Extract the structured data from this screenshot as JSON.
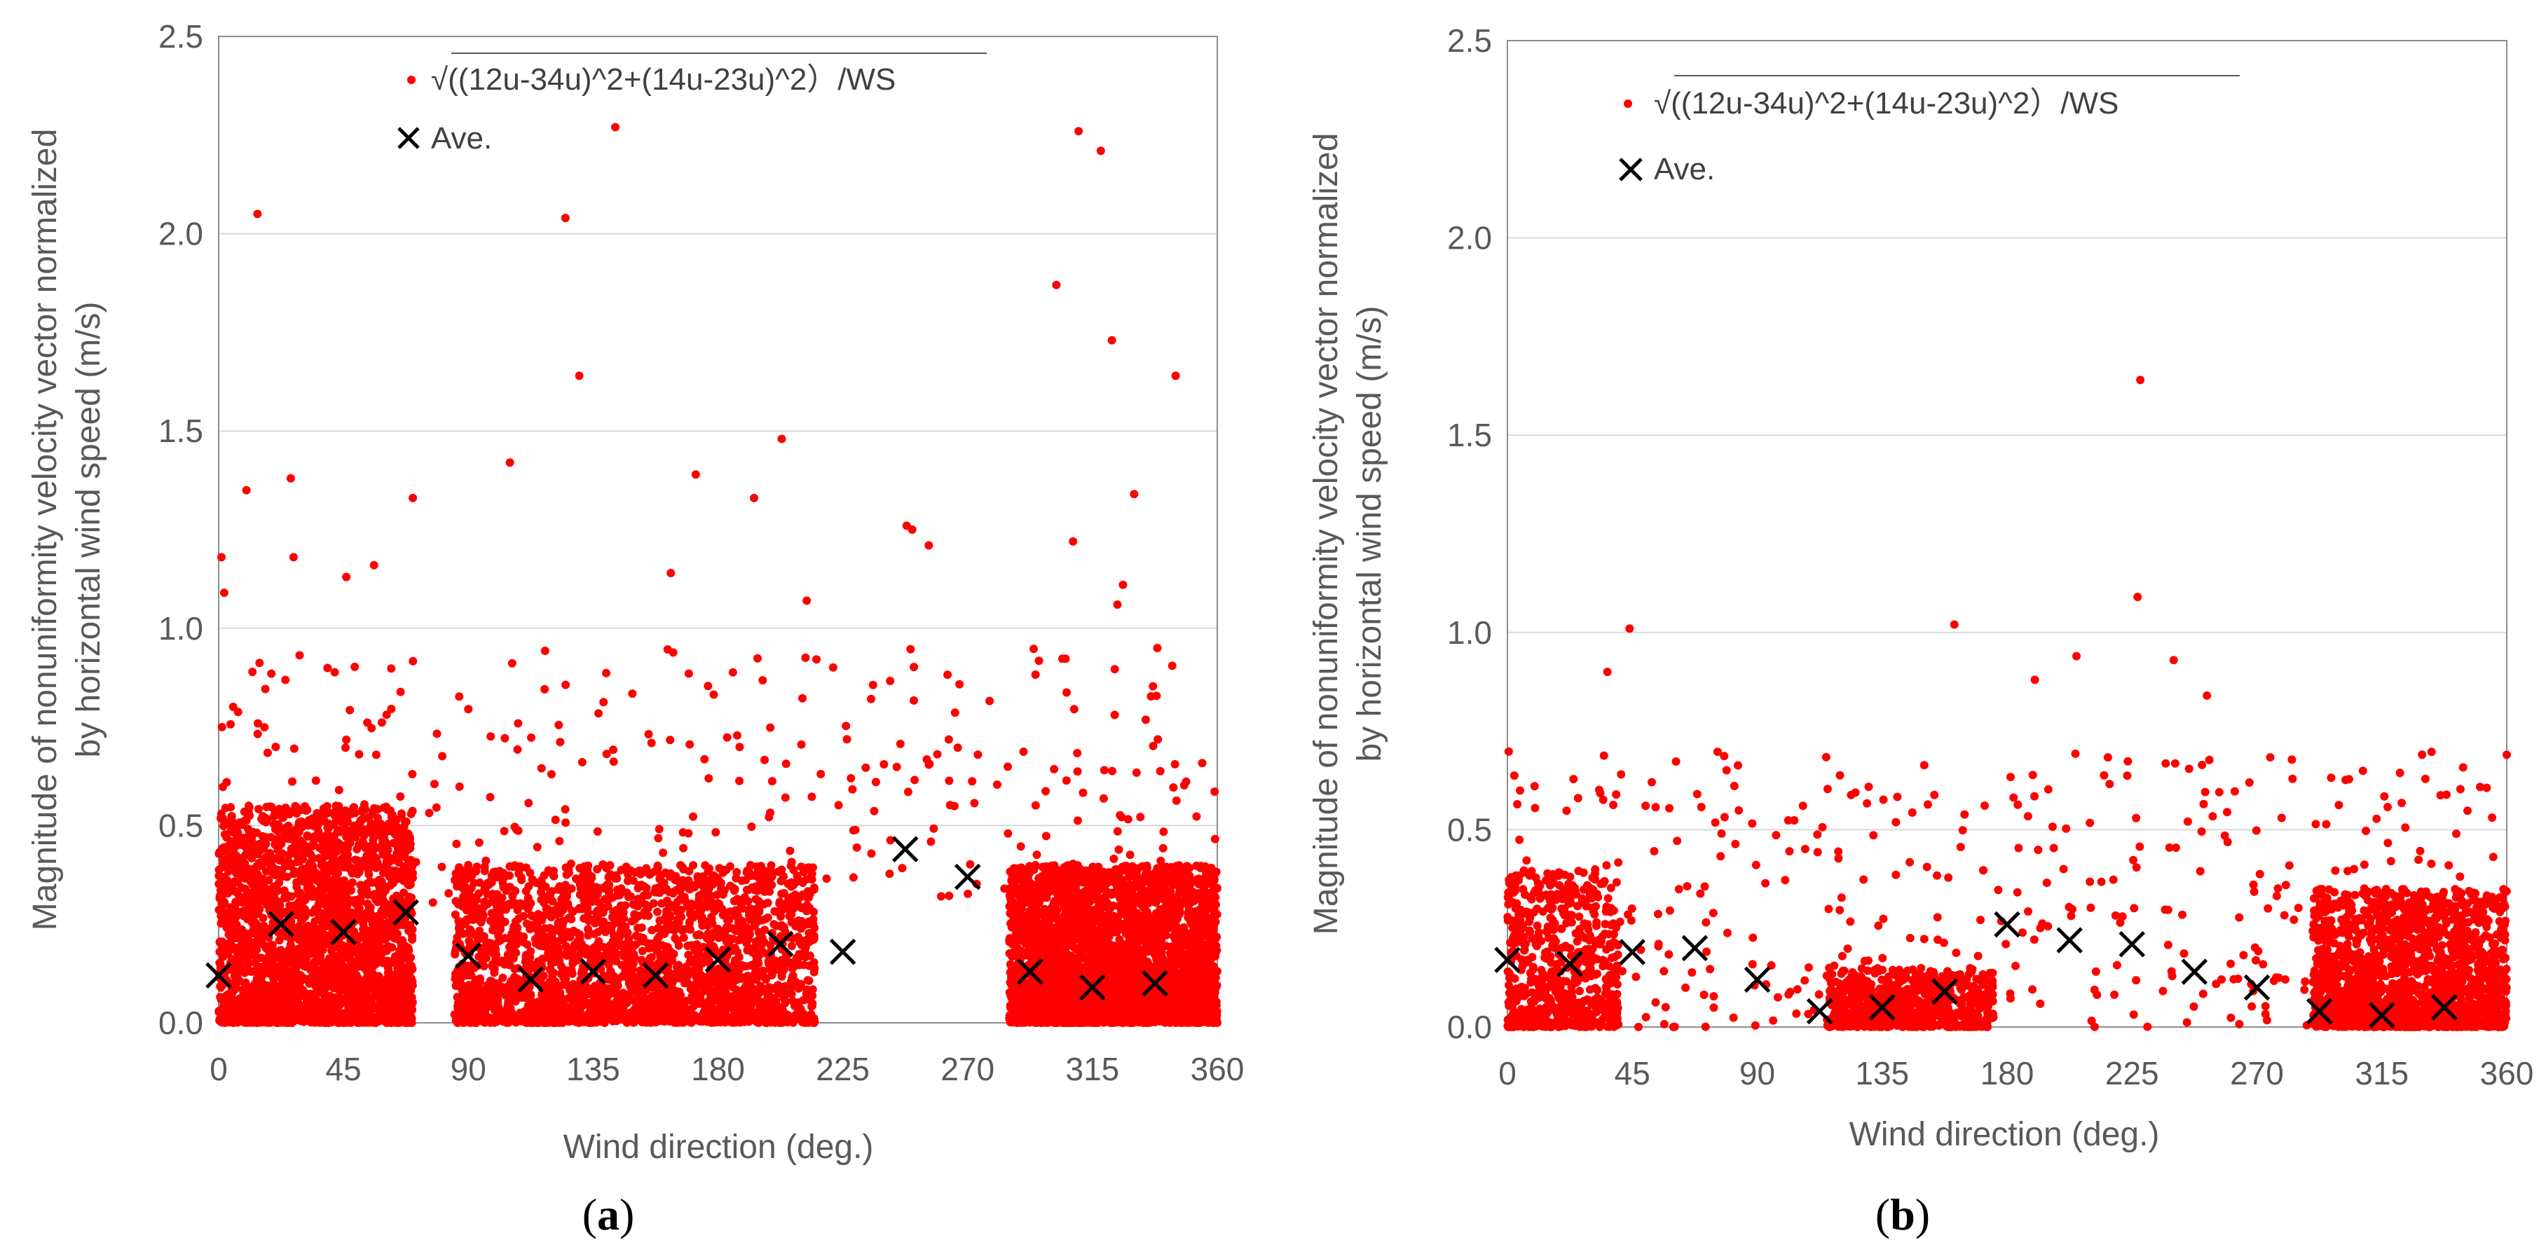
{
  "chart_data": [
    {
      "type": "scatter",
      "panel_label": "a",
      "xlabel": "Wind direction (deg.)",
      "ylabel_line1": "Magnitude of nonuniformity velocity vector normalized",
      "ylabel_line2": "by horizontal wind speed (m/s)",
      "xlim": [
        0,
        360
      ],
      "ylim": [
        0,
        2.5
      ],
      "xticks": [
        0,
        45,
        90,
        135,
        180,
        225,
        270,
        315,
        360
      ],
      "yticks": [
        "0.0",
        "0.5",
        "1.0",
        "1.5",
        "2.0",
        "2.5"
      ],
      "grid": true,
      "legend_position": "top-center",
      "series": [
        {
          "name": "√((12u-34u)^2+(14u-23u)^2）/WS",
          "marker": "dot",
          "color": "#ff0000",
          "dense_ranges": [
            {
              "x": [
                0,
                70
              ],
              "y": [
                0.0,
                0.55
              ],
              "count": 2600
            },
            {
              "x": [
                85,
                215
              ],
              "y": [
                0.0,
                0.4
              ],
              "count": 2600
            },
            {
              "x": [
                285,
                360
              ],
              "y": [
                0.0,
                0.4
              ],
              "count": 3400
            }
          ],
          "sparse_range": {
            "x": [
              0,
              360
            ],
            "y": [
              0.3,
              0.95
            ],
            "count": 320
          },
          "outliers": [
            [
              1,
              1.18
            ],
            [
              2,
              1.09
            ],
            [
              10,
              1.35
            ],
            [
              14,
              2.05
            ],
            [
              26,
              1.38
            ],
            [
              27,
              1.18
            ],
            [
              46,
              1.13
            ],
            [
              56,
              1.16
            ],
            [
              70,
              1.33
            ],
            [
              105,
              1.42
            ],
            [
              125,
              2.04
            ],
            [
              130,
              1.64
            ],
            [
              143,
              2.27
            ],
            [
              163,
              1.14
            ],
            [
              172,
              1.39
            ],
            [
              193,
              1.33
            ],
            [
              203,
              1.48
            ],
            [
              212,
              1.07
            ],
            [
              248,
              1.26
            ],
            [
              250,
              1.25
            ],
            [
              256,
              1.21
            ],
            [
              302,
              1.87
            ],
            [
              308,
              1.22
            ],
            [
              310,
              2.26
            ],
            [
              318,
              2.21
            ],
            [
              322,
              1.73
            ],
            [
              330,
              1.34
            ],
            [
              345,
              1.64
            ],
            [
              326,
              1.11
            ],
            [
              324,
              1.06
            ]
          ]
        },
        {
          "name": "Ave.",
          "marker": "x",
          "color": "#000000",
          "x": [
            0,
            22.5,
            45,
            67.5,
            90,
            112.5,
            135,
            157.5,
            180,
            202.5,
            225,
            247.5,
            270,
            292.5,
            315,
            337.5
          ],
          "y": [
            0.12,
            0.25,
            0.23,
            0.28,
            0.17,
            0.11,
            0.13,
            0.12,
            0.16,
            0.2,
            0.18,
            0.44,
            0.37,
            0.13,
            0.09,
            0.1
          ]
        }
      ]
    },
    {
      "type": "scatter",
      "panel_label": "b",
      "xlabel": "Wind direction (deg.)",
      "ylabel_line1": "Magnitude of nonuniformity velocity vector normalized",
      "ylabel_line2": "by horizontal wind speed (m/s)",
      "xlim": [
        0,
        360
      ],
      "ylim": [
        0,
        2.5
      ],
      "xticks": [
        0,
        45,
        90,
        135,
        180,
        225,
        270,
        315,
        360
      ],
      "yticks": [
        "0.0",
        "0.5",
        "1.0",
        "1.5",
        "2.0",
        "2.5"
      ],
      "grid": true,
      "legend_position": "top-center",
      "series": [
        {
          "name": "√((12u-34u)^2+(14u-23u)^2）/WS",
          "marker": "dot",
          "color": "#ff0000",
          "dense_ranges": [
            {
              "x": [
                0,
                40
              ],
              "y": [
                0.0,
                0.4
              ],
              "count": 650
            },
            {
              "x": [
                115,
                175
              ],
              "y": [
                0.0,
                0.15
              ],
              "count": 700
            },
            {
              "x": [
                290,
                360
              ],
              "y": [
                0.0,
                0.35
              ],
              "count": 1700
            }
          ],
          "sparse_range": {
            "x": [
              0,
              360
            ],
            "y": [
              0.0,
              0.7
            ],
            "count": 420
          },
          "outliers": [
            [
              44,
              1.01
            ],
            [
              36,
              0.9
            ],
            [
              161,
              1.02
            ],
            [
              190,
              0.88
            ],
            [
              205,
              0.94
            ],
            [
              227,
              1.09
            ],
            [
              228,
              1.64
            ],
            [
              240,
              0.93
            ],
            [
              252,
              0.84
            ],
            [
              360,
              0.69
            ]
          ]
        },
        {
          "name": "Ave.",
          "marker": "x",
          "color": "#000000",
          "x": [
            0,
            22.5,
            45,
            67.5,
            90,
            112.5,
            135,
            157.5,
            180,
            202.5,
            225,
            247.5,
            270,
            292.5,
            315,
            337.5
          ],
          "y": [
            0.17,
            0.16,
            0.19,
            0.2,
            0.12,
            0.04,
            0.05,
            0.09,
            0.26,
            0.22,
            0.21,
            0.14,
            0.1,
            0.04,
            0.03,
            0.05
          ]
        }
      ]
    }
  ]
}
